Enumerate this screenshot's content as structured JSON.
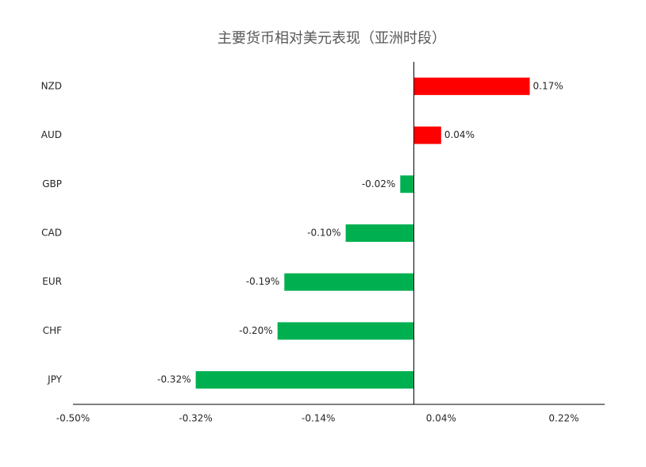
{
  "chart_data": {
    "type": "hbar",
    "title": "主要货币相对美元表现（亚洲时段）",
    "categories": [
      "NZD",
      "AUD",
      "GBP",
      "CAD",
      "EUR",
      "CHF",
      "JPY"
    ],
    "values": [
      0.17,
      0.04,
      -0.02,
      -0.1,
      -0.19,
      -0.2,
      -0.32
    ],
    "value_labels": [
      "0.17%",
      "0.04%",
      "-0.02%",
      "-0.10%",
      "-0.19%",
      "-0.20%",
      "-0.32%"
    ],
    "positive_color": "#ff0000",
    "negative_color": "#00b050",
    "xlim": [
      -0.5,
      0.28
    ],
    "xticks": [
      {
        "value": -0.5,
        "label": "-0.50%"
      },
      {
        "value": -0.32,
        "label": "-0.32%"
      },
      {
        "value": -0.14,
        "label": "-0.14%"
      },
      {
        "value": 0.04,
        "label": "0.04%"
      },
      {
        "value": 0.22,
        "label": "0.22%"
      }
    ],
    "grid": false
  }
}
